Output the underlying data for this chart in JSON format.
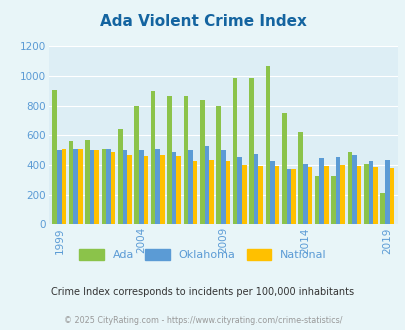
{
  "title": "Ada Violent Crime Index",
  "subtitle": "Crime Index corresponds to incidents per 100,000 inhabitants",
  "footer": "© 2025 CityRating.com - https://www.cityrating.com/crime-statistics/",
  "years": [
    1999,
    2000,
    2001,
    2002,
    2003,
    2004,
    2005,
    2006,
    2007,
    2008,
    2009,
    2010,
    2011,
    2012,
    2013,
    2014,
    2015,
    2016,
    2017,
    2018,
    2019
  ],
  "ada": [
    905,
    560,
    565,
    505,
    640,
    800,
    900,
    862,
    862,
    835,
    800,
    985,
    985,
    1070,
    750,
    625,
    325,
    325,
    490,
    410,
    210
  ],
  "oklahoma": [
    500,
    505,
    500,
    505,
    500,
    500,
    505,
    490,
    500,
    525,
    500,
    455,
    475,
    425,
    375,
    410,
    450,
    455,
    465,
    430,
    435
  ],
  "national": [
    505,
    505,
    500,
    490,
    465,
    460,
    465,
    460,
    430,
    435,
    430,
    400,
    395,
    390,
    375,
    385,
    390,
    400,
    395,
    385,
    380
  ],
  "ada_color": "#8bc34a",
  "oklahoma_color": "#5b9bd5",
  "national_color": "#ffc000",
  "bg_color": "#e8f5f8",
  "plot_bg_color": "#ddeef5",
  "title_color": "#1464a0",
  "tick_color": "#5b9bd5",
  "subtitle_color": "#333333",
  "footer_color": "#999999",
  "ylim": [
    0,
    1200
  ],
  "yticks": [
    0,
    200,
    400,
    600,
    800,
    1000,
    1200
  ],
  "xticks": [
    1999,
    2004,
    2009,
    2014,
    2019
  ]
}
